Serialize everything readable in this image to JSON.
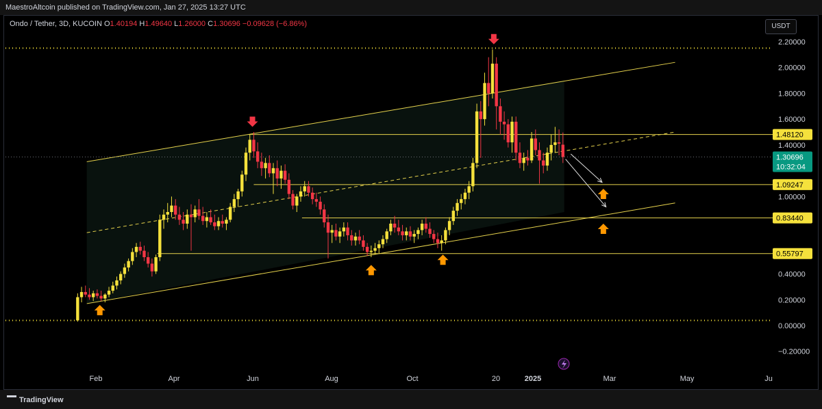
{
  "header": {
    "attribution": "MaestroAltcoin published on TradingView.com, Jan 27, 2025 13:27 UTC"
  },
  "legend": {
    "symbol": "Ondo / Tether, 3D, KUCOIN",
    "o_label": "O",
    "o": "1.40194",
    "h_label": "H",
    "h": "1.49640",
    "l_label": "L",
    "l": "1.26000",
    "c_label": "C",
    "c": "1.30696",
    "change": "−0.09628 (−6.86%)"
  },
  "currency_button": "USDT",
  "price_tag": {
    "price": "1.30696",
    "countdown": "10:32:04",
    "color": "#089981"
  },
  "footer": {
    "brand": "TradingView"
  },
  "colors": {
    "up": "#f5e13c",
    "down": "#f23645",
    "level": "#e8d44d",
    "arrow": "#ff9800",
    "marker": "#f23645"
  },
  "chart_data": {
    "type": "candlestick",
    "y_ticks": [
      2.2,
      2.0,
      1.8,
      1.6,
      1.4,
      1.0,
      0.4,
      0.2,
      0.0,
      -0.2
    ],
    "y_tick_labels": [
      "2.20000",
      "2.00000",
      "1.80000",
      "1.60000",
      "1.40000",
      "1.00000",
      "0.40000",
      "0.20000",
      "0.00000",
      "−0.20000"
    ],
    "ylim": [
      -0.28,
      2.38
    ],
    "x_ticks": [
      "Feb",
      "Apr",
      "Jun",
      "Aug",
      "Oct",
      "20",
      "2025",
      "Mar",
      "May",
      "Ju"
    ],
    "levels": [
      {
        "label": "1.48120",
        "value": 1.4812
      },
      {
        "label": "1.09247",
        "value": 1.09247
      },
      {
        "label": "0.83440",
        "value": 0.8344
      },
      {
        "label": "0.55797",
        "value": 0.55797
      }
    ],
    "dotted_levels": [
      2.15,
      0.04
    ],
    "channel": {
      "upper": [
        [
          "2024-01-25",
          1.27
        ],
        [
          "2025-04-20",
          2.04
        ]
      ],
      "middle": [
        [
          "2024-01-25",
          0.72
        ],
        [
          "2025-04-20",
          1.5
        ]
      ],
      "lower": [
        [
          "2024-01-25",
          0.17
        ],
        [
          "2025-04-20",
          0.95
        ]
      ]
    },
    "candles": [
      [
        "2024-01-18",
        0.04,
        0.25,
        0.03,
        0.22
      ],
      [
        "2024-01-21",
        0.22,
        0.3,
        0.18,
        0.26
      ],
      [
        "2024-01-24",
        0.26,
        0.31,
        0.22,
        0.24
      ],
      [
        "2024-01-27",
        0.24,
        0.29,
        0.2,
        0.22
      ],
      [
        "2024-01-30",
        0.22,
        0.27,
        0.19,
        0.25
      ],
      [
        "2024-02-02",
        0.25,
        0.28,
        0.21,
        0.23
      ],
      [
        "2024-02-05",
        0.23,
        0.27,
        0.19,
        0.21
      ],
      [
        "2024-02-08",
        0.21,
        0.25,
        0.18,
        0.24
      ],
      [
        "2024-02-11",
        0.24,
        0.3,
        0.22,
        0.27
      ],
      [
        "2024-02-14",
        0.27,
        0.34,
        0.25,
        0.31
      ],
      [
        "2024-02-17",
        0.31,
        0.38,
        0.28,
        0.35
      ],
      [
        "2024-02-20",
        0.35,
        0.42,
        0.32,
        0.4
      ],
      [
        "2024-02-23",
        0.4,
        0.48,
        0.37,
        0.45
      ],
      [
        "2024-02-26",
        0.45,
        0.52,
        0.42,
        0.5
      ],
      [
        "2024-02-29",
        0.5,
        0.6,
        0.47,
        0.57
      ],
      [
        "2024-03-03",
        0.57,
        0.64,
        0.53,
        0.61
      ],
      [
        "2024-03-06",
        0.61,
        0.65,
        0.55,
        0.58
      ],
      [
        "2024-03-09",
        0.58,
        0.62,
        0.5,
        0.53
      ],
      [
        "2024-03-12",
        0.53,
        0.57,
        0.45,
        0.48
      ],
      [
        "2024-03-15",
        0.48,
        0.52,
        0.38,
        0.42
      ],
      [
        "2024-03-18",
        0.42,
        0.55,
        0.4,
        0.53
      ],
      [
        "2024-03-21",
        0.53,
        0.86,
        0.5,
        0.82
      ],
      [
        "2024-03-24",
        0.82,
        0.9,
        0.75,
        0.86
      ],
      [
        "2024-03-27",
        0.86,
        0.95,
        0.8,
        0.88
      ],
      [
        "2024-03-30",
        0.88,
        1.0,
        0.84,
        0.93
      ],
      [
        "2024-04-02",
        0.93,
        0.98,
        0.82,
        0.86
      ],
      [
        "2024-04-05",
        0.86,
        0.92,
        0.78,
        0.82
      ],
      [
        "2024-04-08",
        0.82,
        0.88,
        0.74,
        0.79
      ],
      [
        "2024-04-11",
        0.79,
        0.9,
        0.75,
        0.86
      ],
      [
        "2024-04-14",
        0.86,
        0.94,
        0.58,
        0.84
      ],
      [
        "2024-04-17",
        0.84,
        0.93,
        0.8,
        0.9
      ],
      [
        "2024-04-20",
        0.9,
        0.98,
        0.82,
        0.85
      ],
      [
        "2024-04-23",
        0.85,
        0.92,
        0.78,
        0.81
      ],
      [
        "2024-04-26",
        0.81,
        0.88,
        0.76,
        0.84
      ],
      [
        "2024-04-29",
        0.84,
        0.9,
        0.78,
        0.8
      ],
      [
        "2024-05-02",
        0.8,
        0.86,
        0.74,
        0.77
      ],
      [
        "2024-05-05",
        0.77,
        0.84,
        0.74,
        0.81
      ],
      [
        "2024-05-08",
        0.81,
        0.86,
        0.76,
        0.79
      ],
      [
        "2024-05-11",
        0.79,
        0.84,
        0.74,
        0.82
      ],
      [
        "2024-05-14",
        0.82,
        0.95,
        0.8,
        0.92
      ],
      [
        "2024-05-17",
        0.92,
        1.02,
        0.88,
        0.98
      ],
      [
        "2024-05-20",
        0.98,
        1.06,
        0.92,
        1.04
      ],
      [
        "2024-05-23",
        1.04,
        1.2,
        1.0,
        1.17
      ],
      [
        "2024-05-26",
        1.17,
        1.38,
        1.12,
        1.34
      ],
      [
        "2024-05-29",
        1.34,
        1.48,
        1.28,
        1.44
      ],
      [
        "2024-06-01",
        1.44,
        1.5,
        1.3,
        1.35
      ],
      [
        "2024-06-04",
        1.35,
        1.42,
        1.22,
        1.27
      ],
      [
        "2024-06-07",
        1.27,
        1.34,
        1.16,
        1.22
      ],
      [
        "2024-06-10",
        1.22,
        1.3,
        1.14,
        1.26
      ],
      [
        "2024-06-13",
        1.26,
        1.32,
        1.15,
        1.18
      ],
      [
        "2024-06-16",
        1.18,
        1.26,
        1.02,
        1.22
      ],
      [
        "2024-06-19",
        1.22,
        1.28,
        1.08,
        1.14
      ],
      [
        "2024-06-22",
        1.14,
        1.24,
        1.06,
        1.2
      ],
      [
        "2024-06-25",
        1.2,
        1.25,
        1.1,
        1.13
      ],
      [
        "2024-06-28",
        1.13,
        1.18,
        0.98,
        1.02
      ],
      [
        "2024-07-01",
        1.02,
        1.05,
        0.9,
        0.93
      ],
      [
        "2024-07-04",
        0.93,
        1.02,
        0.88,
        1.0
      ],
      [
        "2024-07-07",
        1.0,
        1.08,
        0.96,
        1.04
      ],
      [
        "2024-07-10",
        1.04,
        1.12,
        1.0,
        1.08
      ],
      [
        "2024-07-13",
        1.08,
        1.12,
        1.0,
        1.03
      ],
      [
        "2024-07-16",
        1.03,
        1.07,
        0.94,
        0.98
      ],
      [
        "2024-07-19",
        0.98,
        1.03,
        0.92,
        0.96
      ],
      [
        "2024-07-22",
        0.96,
        1.0,
        0.86,
        0.9
      ],
      [
        "2024-07-25",
        0.9,
        0.94,
        0.76,
        0.8
      ],
      [
        "2024-07-28",
        0.8,
        0.86,
        0.52,
        0.72
      ],
      [
        "2024-07-31",
        0.72,
        0.78,
        0.64,
        0.74
      ],
      [
        "2024-08-03",
        0.74,
        0.79,
        0.66,
        0.69
      ],
      [
        "2024-08-06",
        0.69,
        0.76,
        0.64,
        0.73
      ],
      [
        "2024-08-09",
        0.73,
        0.8,
        0.69,
        0.76
      ],
      [
        "2024-08-12",
        0.76,
        0.8,
        0.66,
        0.7
      ],
      [
        "2024-08-15",
        0.7,
        0.74,
        0.62,
        0.66
      ],
      [
        "2024-08-18",
        0.66,
        0.72,
        0.62,
        0.69
      ],
      [
        "2024-08-21",
        0.69,
        0.74,
        0.63,
        0.66
      ],
      [
        "2024-08-24",
        0.66,
        0.7,
        0.58,
        0.61
      ],
      [
        "2024-08-27",
        0.61,
        0.64,
        0.54,
        0.57
      ],
      [
        "2024-08-30",
        0.57,
        0.62,
        0.53,
        0.58
      ],
      [
        "2024-09-02",
        0.58,
        0.64,
        0.55,
        0.6
      ],
      [
        "2024-09-05",
        0.6,
        0.66,
        0.56,
        0.63
      ],
      [
        "2024-09-08",
        0.63,
        0.7,
        0.6,
        0.67
      ],
      [
        "2024-09-11",
        0.67,
        0.75,
        0.64,
        0.73
      ],
      [
        "2024-09-14",
        0.73,
        0.82,
        0.7,
        0.79
      ],
      [
        "2024-09-17",
        0.79,
        0.85,
        0.72,
        0.76
      ],
      [
        "2024-09-20",
        0.76,
        0.82,
        0.7,
        0.73
      ],
      [
        "2024-09-23",
        0.73,
        0.78,
        0.66,
        0.7
      ],
      [
        "2024-09-26",
        0.7,
        0.76,
        0.66,
        0.73
      ],
      [
        "2024-09-29",
        0.73,
        0.77,
        0.66,
        0.69
      ],
      [
        "2024-10-02",
        0.69,
        0.74,
        0.64,
        0.71
      ],
      [
        "2024-10-05",
        0.71,
        0.76,
        0.67,
        0.74
      ],
      [
        "2024-10-08",
        0.74,
        0.82,
        0.7,
        0.79
      ],
      [
        "2024-10-11",
        0.79,
        0.84,
        0.72,
        0.75
      ],
      [
        "2024-10-14",
        0.75,
        0.8,
        0.68,
        0.71
      ],
      [
        "2024-10-17",
        0.71,
        0.74,
        0.64,
        0.67
      ],
      [
        "2024-10-20",
        0.67,
        0.72,
        0.6,
        0.64
      ],
      [
        "2024-10-23",
        0.64,
        0.7,
        0.58,
        0.66
      ],
      [
        "2024-10-26",
        0.66,
        0.76,
        0.63,
        0.74
      ],
      [
        "2024-10-29",
        0.74,
        0.84,
        0.7,
        0.81
      ],
      [
        "2024-11-01",
        0.81,
        0.92,
        0.78,
        0.89
      ],
      [
        "2024-11-04",
        0.89,
        0.98,
        0.85,
        0.95
      ],
      [
        "2024-11-07",
        0.95,
        1.02,
        0.9,
        0.98
      ],
      [
        "2024-11-10",
        0.98,
        1.06,
        0.94,
        1.03
      ],
      [
        "2024-11-13",
        1.03,
        1.12,
        0.98,
        1.08
      ],
      [
        "2024-11-16",
        1.08,
        1.3,
        1.04,
        1.26
      ],
      [
        "2024-11-19",
        1.26,
        1.72,
        1.22,
        1.66
      ],
      [
        "2024-11-22",
        1.66,
        1.74,
        1.3,
        1.6
      ],
      [
        "2024-11-25",
        1.6,
        1.96,
        1.55,
        1.88
      ],
      [
        "2024-11-28",
        1.88,
        2.08,
        1.7,
        1.8
      ],
      [
        "2024-12-01",
        1.8,
        2.14,
        1.76,
        2.03
      ],
      [
        "2024-12-04",
        2.03,
        2.08,
        1.52,
        1.7
      ],
      [
        "2024-12-07",
        1.7,
        1.76,
        1.48,
        1.58
      ],
      [
        "2024-12-10",
        1.58,
        1.66,
        1.44,
        1.56
      ],
      [
        "2024-12-13",
        1.56,
        1.6,
        1.38,
        1.42
      ],
      [
        "2024-12-16",
        1.42,
        1.62,
        1.34,
        1.58
      ],
      [
        "2024-12-19",
        1.58,
        1.62,
        1.28,
        1.34
      ],
      [
        "2024-12-22",
        1.34,
        1.42,
        1.22,
        1.26
      ],
      [
        "2024-12-25",
        1.26,
        1.34,
        1.2,
        1.3
      ],
      [
        "2024-12-28",
        1.3,
        1.36,
        1.24,
        1.28
      ],
      [
        "2024-12-31",
        1.28,
        1.5,
        1.26,
        1.45
      ],
      [
        "2025-01-03",
        1.45,
        1.52,
        1.32,
        1.36
      ],
      [
        "2025-01-06",
        1.36,
        1.42,
        1.1,
        1.28
      ],
      [
        "2025-01-09",
        1.28,
        1.34,
        1.18,
        1.24
      ],
      [
        "2025-01-12",
        1.24,
        1.38,
        1.2,
        1.34
      ],
      [
        "2025-01-15",
        1.34,
        1.48,
        1.28,
        1.4
      ],
      [
        "2025-01-18",
        1.4,
        1.54,
        1.34,
        1.42
      ],
      [
        "2025-01-21",
        1.42,
        1.52,
        1.32,
        1.41
      ],
      [
        "2025-01-24",
        1.40194,
        1.4964,
        1.26,
        1.30696
      ]
    ]
  }
}
